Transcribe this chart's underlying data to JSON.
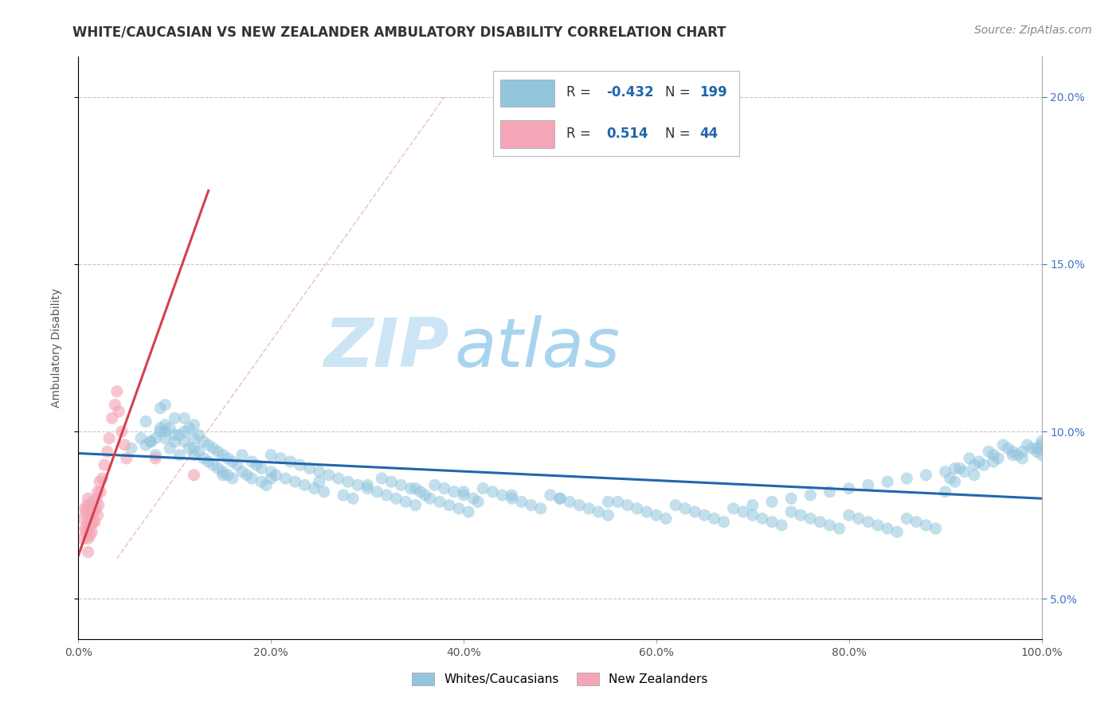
{
  "title": "WHITE/CAUCASIAN VS NEW ZEALANDER AMBULATORY DISABILITY CORRELATION CHART",
  "source": "Source: ZipAtlas.com",
  "ylabel": "Ambulatory Disability",
  "legend_label1": "Whites/Caucasians",
  "legend_label2": "New Zealanders",
  "R1": -0.432,
  "N1": 199,
  "R2": 0.514,
  "N2": 44,
  "blue_color": "#92c5de",
  "pink_color": "#f4a6b8",
  "blue_line_color": "#2166ac",
  "pink_line_color": "#d6404e",
  "watermark_zip": "ZIP",
  "watermark_atlas": "atlas",
  "xmin": 0.0,
  "xmax": 1.0,
  "ymin": 0.038,
  "ymax": 0.212,
  "xticks": [
    0.0,
    0.2,
    0.4,
    0.6,
    0.8,
    1.0
  ],
  "xtick_labels": [
    "0.0%",
    "20.0%",
    "40.0%",
    "60.0%",
    "80.0%",
    "100.0%"
  ],
  "yticks": [
    0.05,
    0.1,
    0.15,
    0.2
  ],
  "ytick_labels": [
    "5.0%",
    "10.0%",
    "15.0%",
    "20.0%"
  ],
  "title_fontsize": 12,
  "source_fontsize": 10,
  "axis_label_fontsize": 10,
  "tick_fontsize": 10,
  "watermark_fontsize_zip": 62,
  "watermark_fontsize_atlas": 62,
  "watermark_color_zip": "#cce5f5",
  "watermark_color_atlas": "#a8d4ee",
  "background_color": "#ffffff",
  "grid_color": "#c8c8c8",
  "trendline1_x": [
    0.0,
    1.0
  ],
  "trendline1_y": [
    0.0935,
    0.08
  ],
  "trendline2_x": [
    0.0,
    0.135
  ],
  "trendline2_y": [
    0.063,
    0.172
  ],
  "refline_x": [
    0.04,
    0.38
  ],
  "refline_y": [
    0.062,
    0.2
  ],
  "blue_scatter_x": [
    0.055,
    0.065,
    0.07,
    0.075,
    0.08,
    0.085,
    0.085,
    0.09,
    0.09,
    0.09,
    0.095,
    0.095,
    0.1,
    0.1,
    0.105,
    0.105,
    0.11,
    0.11,
    0.11,
    0.115,
    0.115,
    0.12,
    0.12,
    0.12,
    0.125,
    0.125,
    0.13,
    0.13,
    0.135,
    0.135,
    0.14,
    0.14,
    0.145,
    0.145,
    0.15,
    0.15,
    0.155,
    0.155,
    0.16,
    0.16,
    0.165,
    0.17,
    0.17,
    0.175,
    0.18,
    0.18,
    0.185,
    0.19,
    0.19,
    0.195,
    0.2,
    0.2,
    0.205,
    0.21,
    0.215,
    0.22,
    0.225,
    0.23,
    0.235,
    0.24,
    0.245,
    0.25,
    0.255,
    0.26,
    0.27,
    0.275,
    0.28,
    0.285,
    0.29,
    0.3,
    0.31,
    0.315,
    0.32,
    0.325,
    0.33,
    0.335,
    0.34,
    0.345,
    0.35,
    0.355,
    0.36,
    0.365,
    0.37,
    0.375,
    0.38,
    0.385,
    0.39,
    0.395,
    0.4,
    0.405,
    0.41,
    0.415,
    0.42,
    0.43,
    0.44,
    0.45,
    0.46,
    0.47,
    0.48,
    0.49,
    0.5,
    0.51,
    0.52,
    0.53,
    0.54,
    0.55,
    0.56,
    0.57,
    0.58,
    0.59,
    0.6,
    0.61,
    0.62,
    0.63,
    0.64,
    0.65,
    0.66,
    0.67,
    0.68,
    0.69,
    0.7,
    0.71,
    0.72,
    0.73,
    0.74,
    0.75,
    0.76,
    0.77,
    0.78,
    0.79,
    0.8,
    0.81,
    0.82,
    0.83,
    0.84,
    0.85,
    0.86,
    0.87,
    0.88,
    0.89,
    0.9,
    0.905,
    0.91,
    0.915,
    0.92,
    0.925,
    0.93,
    0.935,
    0.94,
    0.945,
    0.95,
    0.955,
    0.96,
    0.965,
    0.97,
    0.975,
    0.98,
    0.985,
    0.99,
    0.995,
    1.0,
    1.0,
    1.0,
    0.995,
    0.98,
    0.97,
    0.95,
    0.93,
    0.91,
    0.9,
    0.88,
    0.86,
    0.84,
    0.82,
    0.8,
    0.78,
    0.76,
    0.74,
    0.72,
    0.7,
    0.55,
    0.5,
    0.45,
    0.4,
    0.35,
    0.3,
    0.25,
    0.2,
    0.15,
    0.12,
    0.1,
    0.09,
    0.085,
    0.08,
    0.075,
    0.07
  ],
  "blue_scatter_y": [
    0.095,
    0.098,
    0.103,
    0.097,
    0.093,
    0.1,
    0.107,
    0.098,
    0.102,
    0.108,
    0.095,
    0.101,
    0.097,
    0.104,
    0.093,
    0.099,
    0.097,
    0.1,
    0.104,
    0.095,
    0.101,
    0.093,
    0.098,
    0.102,
    0.094,
    0.099,
    0.092,
    0.097,
    0.091,
    0.096,
    0.09,
    0.095,
    0.089,
    0.094,
    0.088,
    0.093,
    0.087,
    0.092,
    0.091,
    0.086,
    0.09,
    0.088,
    0.093,
    0.087,
    0.086,
    0.091,
    0.09,
    0.085,
    0.089,
    0.084,
    0.088,
    0.093,
    0.087,
    0.092,
    0.086,
    0.091,
    0.085,
    0.09,
    0.084,
    0.089,
    0.083,
    0.088,
    0.082,
    0.087,
    0.086,
    0.081,
    0.085,
    0.08,
    0.084,
    0.083,
    0.082,
    0.086,
    0.081,
    0.085,
    0.08,
    0.084,
    0.079,
    0.083,
    0.078,
    0.082,
    0.081,
    0.08,
    0.084,
    0.079,
    0.083,
    0.078,
    0.082,
    0.077,
    0.081,
    0.076,
    0.08,
    0.079,
    0.083,
    0.082,
    0.081,
    0.08,
    0.079,
    0.078,
    0.077,
    0.081,
    0.08,
    0.079,
    0.078,
    0.077,
    0.076,
    0.075,
    0.079,
    0.078,
    0.077,
    0.076,
    0.075,
    0.074,
    0.078,
    0.077,
    0.076,
    0.075,
    0.074,
    0.073,
    0.077,
    0.076,
    0.075,
    0.074,
    0.073,
    0.072,
    0.076,
    0.075,
    0.074,
    0.073,
    0.072,
    0.071,
    0.075,
    0.074,
    0.073,
    0.072,
    0.071,
    0.07,
    0.074,
    0.073,
    0.072,
    0.071,
    0.082,
    0.086,
    0.085,
    0.089,
    0.088,
    0.092,
    0.087,
    0.091,
    0.09,
    0.094,
    0.093,
    0.092,
    0.096,
    0.095,
    0.094,
    0.093,
    0.092,
    0.096,
    0.095,
    0.094,
    0.093,
    0.097,
    0.096,
    0.095,
    0.094,
    0.093,
    0.091,
    0.09,
    0.089,
    0.088,
    0.087,
    0.086,
    0.085,
    0.084,
    0.083,
    0.082,
    0.081,
    0.08,
    0.079,
    0.078,
    0.079,
    0.08,
    0.081,
    0.082,
    0.083,
    0.084,
    0.085,
    0.086,
    0.087,
    0.095,
    0.099,
    0.1,
    0.101,
    0.098,
    0.097,
    0.096
  ],
  "pink_scatter_x": [
    0.005,
    0.005,
    0.007,
    0.007,
    0.008,
    0.008,
    0.009,
    0.009,
    0.01,
    0.01,
    0.01,
    0.01,
    0.011,
    0.011,
    0.012,
    0.012,
    0.013,
    0.013,
    0.014,
    0.014,
    0.015,
    0.015,
    0.016,
    0.017,
    0.018,
    0.019,
    0.02,
    0.02,
    0.021,
    0.022,
    0.023,
    0.025,
    0.027,
    0.03,
    0.032,
    0.035,
    0.038,
    0.04,
    0.042,
    0.045,
    0.048,
    0.05,
    0.08,
    0.12
  ],
  "pink_scatter_y": [
    0.068,
    0.074,
    0.071,
    0.077,
    0.07,
    0.076,
    0.072,
    0.078,
    0.068,
    0.074,
    0.08,
    0.064,
    0.071,
    0.077,
    0.069,
    0.075,
    0.072,
    0.078,
    0.07,
    0.076,
    0.073,
    0.079,
    0.076,
    0.073,
    0.077,
    0.08,
    0.075,
    0.082,
    0.078,
    0.085,
    0.082,
    0.086,
    0.09,
    0.094,
    0.098,
    0.104,
    0.108,
    0.112,
    0.106,
    0.1,
    0.096,
    0.092,
    0.092,
    0.087
  ]
}
